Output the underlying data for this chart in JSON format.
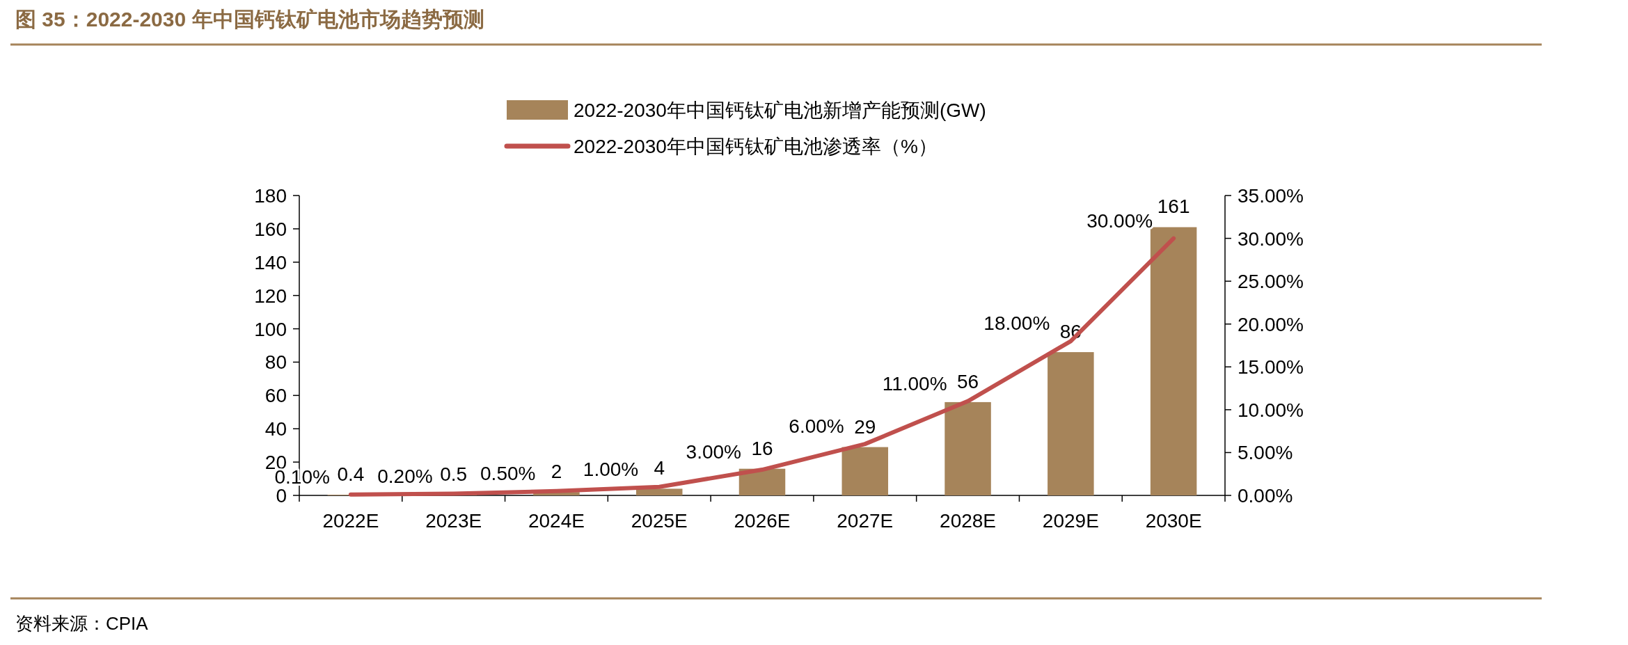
{
  "chart_data": {
    "type": "bar",
    "title": "图 35：2022-2030 年中国钙钛矿电池市场趋势预测",
    "categories": [
      "2022E",
      "2023E",
      "2024E",
      "2025E",
      "2026E",
      "2027E",
      "2028E",
      "2029E",
      "2030E"
    ],
    "series": [
      {
        "name": "2022-2030年中国钙钛矿电池新增产能预测(GW)",
        "color": "#a6845a",
        "values": [
          0.4,
          0.5,
          2,
          4,
          16,
          29,
          56,
          86,
          161
        ]
      },
      {
        "type": "line",
        "axis": "y2",
        "name": "2022-2030年中国钙钛矿电池渗透率（%）",
        "color": "#c0504d",
        "values": [
          0.1,
          0.2,
          0.5,
          1,
          3,
          6,
          11,
          18,
          30
        ],
        "value_labels": [
          "0.10%",
          "0.20%",
          "0.50%",
          "1.00%",
          "3.00%",
          "6.00%",
          "11.00%",
          "18.00%",
          "30.00%"
        ]
      }
    ],
    "ylim": [
      0,
      180
    ],
    "yticks": [
      0,
      20,
      40,
      60,
      80,
      100,
      120,
      140,
      160,
      180
    ],
    "y2lim": [
      0,
      35
    ],
    "y2ticks": [
      {
        "value": 0,
        "label": "0.00%"
      },
      {
        "value": 5,
        "label": "5.00%"
      },
      {
        "value": 10,
        "label": "10.00%"
      },
      {
        "value": 15,
        "label": "15.00%"
      },
      {
        "value": 20,
        "label": "20.00%"
      },
      {
        "value": 25,
        "label": "25.00%"
      },
      {
        "value": 30,
        "label": "30.00%"
      },
      {
        "value": 35,
        "label": "35.00%"
      }
    ],
    "data_labels": true,
    "legend": "top",
    "grid": false,
    "marker": "none",
    "line_style": "solid",
    "annotations": [
      "资料来源：CPIA"
    ]
  }
}
